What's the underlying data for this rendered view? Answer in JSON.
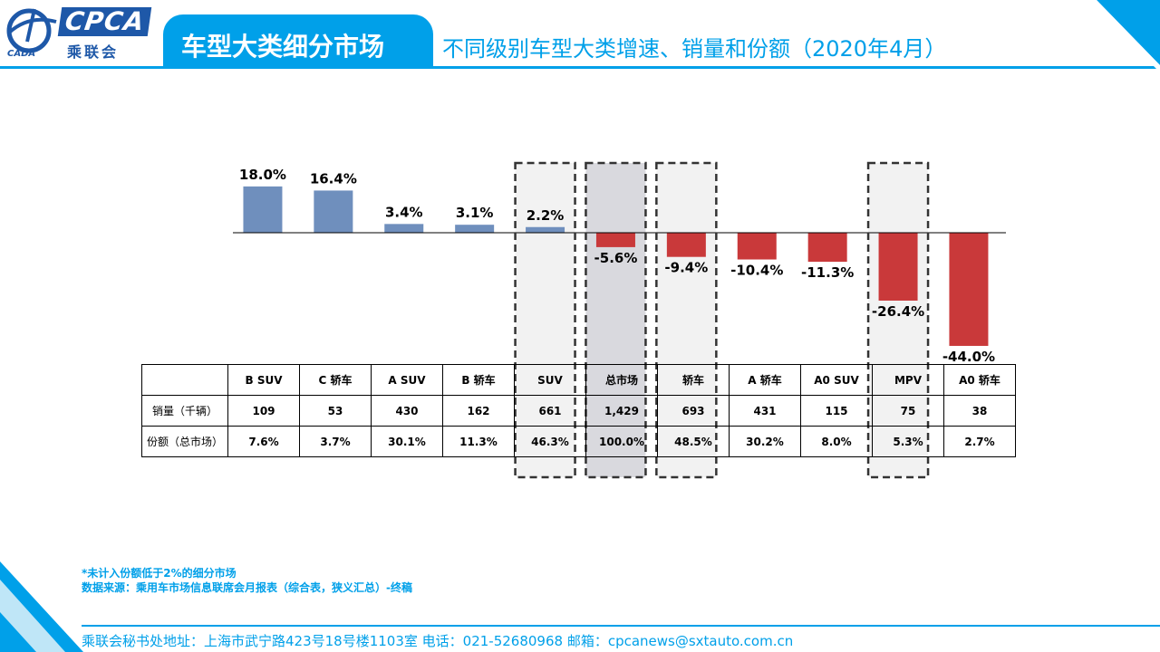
{
  "logo": {
    "brand": "CPCA",
    "brand_cn": "乘联会",
    "sub": "CADA"
  },
  "header": {
    "title": "车型大类细分市场",
    "subtitle": "不同级别车型大类增速、销量和份额（2020年4月）"
  },
  "colors": {
    "accent": "#00a0e9",
    "positive": "#6f8fbd",
    "negative": "#c9393a",
    "highlight_bg": "#f2f2f2",
    "total_bg": "#d9d9de"
  },
  "chart_data": {
    "type": "bar",
    "categories": [
      "B SUV",
      "C 轿车",
      "A SUV",
      "B 轿车",
      "SUV",
      "总市场",
      "轿车",
      "A 轿车",
      "A0 SUV",
      "MPV",
      "A0 轿车"
    ],
    "values": [
      18.0,
      16.4,
      3.4,
      3.1,
      2.2,
      -5.6,
      -9.4,
      -10.4,
      -11.3,
      -26.4,
      -44.0
    ],
    "data_labels": [
      "18.0%",
      "16.4%",
      "3.4%",
      "3.1%",
      "2.2%",
      "-5.6%",
      "-9.4%",
      "-10.4%",
      "-11.3%",
      "-26.4%",
      "-44.0%"
    ],
    "highlighted": [
      "SUV",
      "总市场",
      "轿车",
      "MPV"
    ],
    "title": "",
    "xlabel": "",
    "ylabel": ""
  },
  "table": {
    "rows": [
      {
        "label": "销量（千辆）",
        "values": [
          "109",
          "53",
          "430",
          "162",
          "661",
          "1,429",
          "693",
          "431",
          "115",
          "75",
          "38"
        ]
      },
      {
        "label": "份额（总市场）",
        "values": [
          "7.6%",
          "3.7%",
          "30.1%",
          "11.3%",
          "46.3%",
          "100.0%",
          "48.5%",
          "30.2%",
          "8.0%",
          "5.3%",
          "2.7%"
        ]
      }
    ]
  },
  "notes": {
    "line1": "*未计入份额低于2%的细分市场",
    "line2": "数据来源：乘用车市场信息联席会月报表（综合表，狭义汇总）-终稿"
  },
  "footer": {
    "text": "乘联会秘书处地址：上海市武宁路423号18号楼1103室  电话：021-52680968   邮箱：cpcanews@sxtauto.com.cn"
  }
}
